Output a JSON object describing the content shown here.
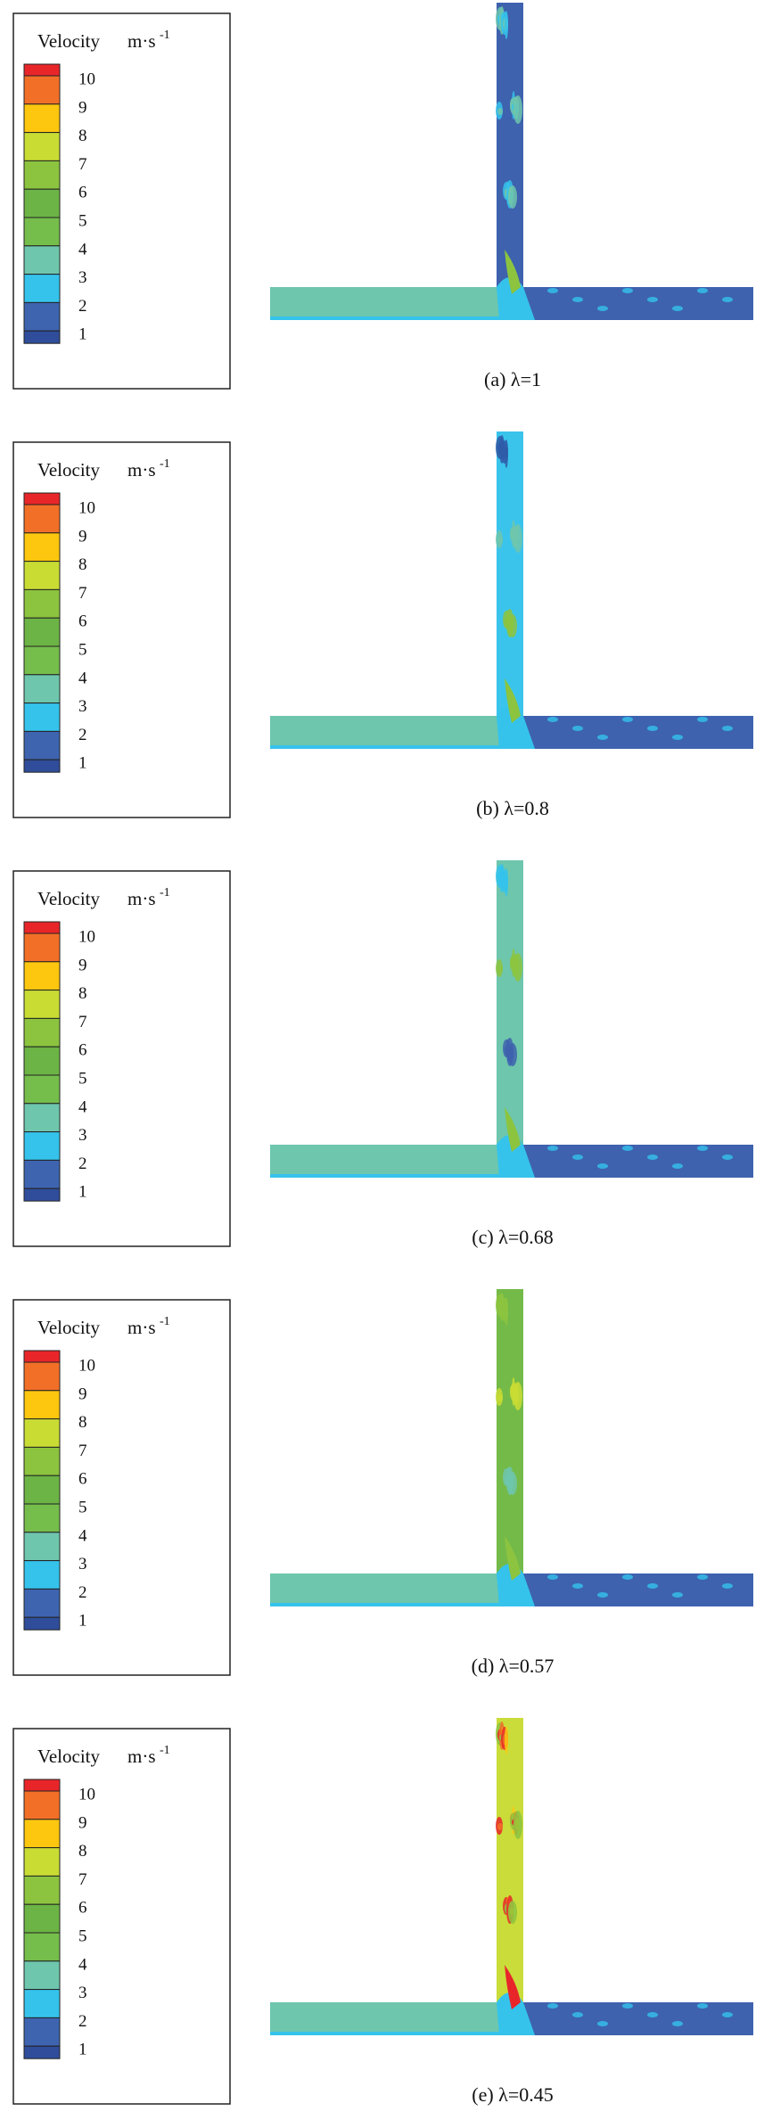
{
  "panels": [
    {
      "legend": {
        "title": "Velocity",
        "unit": "m·s",
        "unit_exponent": "-1",
        "labels": [
          "10",
          "9",
          "8",
          "7",
          "6",
          "5",
          "4",
          "3",
          "2",
          "1"
        ]
      },
      "caption": "(a) λ=1"
    },
    {
      "legend": {
        "title": "Velocity",
        "unit": "m·s",
        "unit_exponent": "-1",
        "labels": [
          "10",
          "9",
          "8",
          "7",
          "6",
          "5",
          "4",
          "3",
          "2",
          "1"
        ]
      },
      "caption": "(b) λ=0.8"
    },
    {
      "legend": {
        "title": "Velocity",
        "unit": "m·s",
        "unit_exponent": "-1",
        "labels": [
          "10",
          "9",
          "8",
          "7",
          "6",
          "5",
          "4",
          "3",
          "2",
          "1"
        ]
      },
      "caption": "(c) λ=0.68"
    },
    {
      "legend": {
        "title": "Velocity",
        "unit": "m·s",
        "unit_exponent": "-1",
        "labels": [
          "10",
          "9",
          "8",
          "7",
          "6",
          "5",
          "4",
          "3",
          "2",
          "1"
        ]
      },
      "caption": "(d) λ=0.57"
    },
    {
      "legend": {
        "title": "Velocity",
        "unit": "m·s",
        "unit_exponent": "-1",
        "labels": [
          "10",
          "9",
          "8",
          "7",
          "6",
          "5",
          "4",
          "3",
          "2",
          "1"
        ]
      },
      "caption": "(e) λ=0.45"
    }
  ]
}
